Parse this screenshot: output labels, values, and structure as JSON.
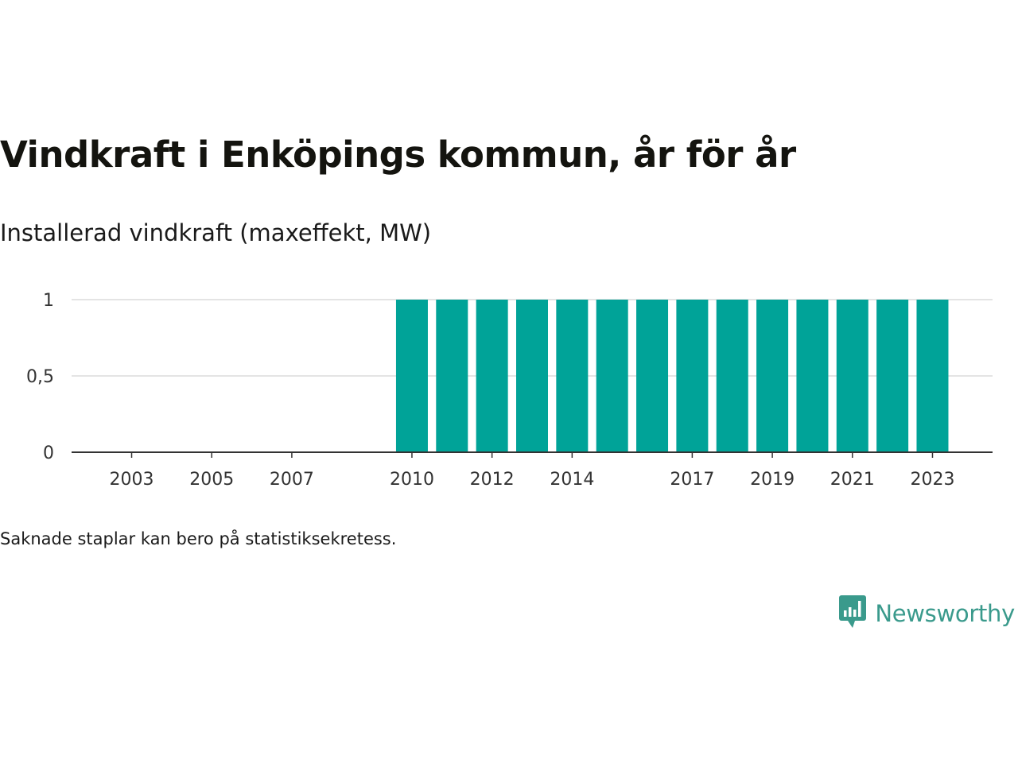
{
  "title": "Vindkraft i Enköpings kommun, år för år",
  "subtitle": "Installerad vindkraft (maxeffekt, MW)",
  "footnote": "Saknade staplar kan bero på statistiksekretess.",
  "brand": {
    "name": "Newsworthy",
    "color": "#3a9a8c",
    "icon": "newsworthy-logo-icon"
  },
  "colors": {
    "bar": "#00a398",
    "grid": "#dcdcdc",
    "axis": "#333333",
    "tick_text": "#333333"
  },
  "chart_data": {
    "type": "bar",
    "x": [
      2003,
      2004,
      2005,
      2006,
      2007,
      2008,
      2009,
      2010,
      2011,
      2012,
      2013,
      2014,
      2015,
      2016,
      2017,
      2018,
      2019,
      2020,
      2021,
      2022,
      2023
    ],
    "values": [
      null,
      null,
      null,
      null,
      null,
      null,
      null,
      1,
      1,
      1,
      1,
      1,
      1,
      1,
      1,
      1,
      1,
      1,
      1,
      1,
      1
    ],
    "xticks": [
      "2003",
      "2005",
      "2007",
      "2010",
      "2012",
      "2014",
      "2017",
      "2019",
      "2021",
      "2023"
    ],
    "yticks": [
      "0",
      "0,5",
      "1"
    ],
    "ytick_values": [
      0,
      0.5,
      1
    ],
    "ylim": [
      0,
      1
    ],
    "xlim": [
      2001.5,
      2024.5
    ],
    "grid": true,
    "legend": "none"
  }
}
